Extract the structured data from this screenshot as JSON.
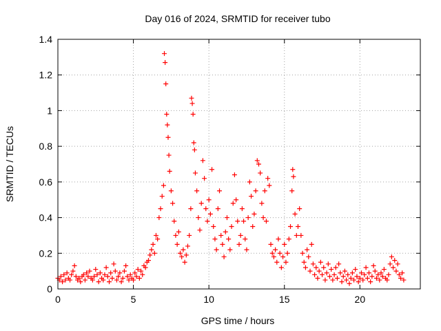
{
  "chart_data": {
    "type": "scatter",
    "title": "Day 016 of 2024, SRMTID for receiver tubo",
    "xlabel": "GPS time / hours",
    "ylabel": "SRMTID / TECUs",
    "xlim": [
      0,
      24
    ],
    "ylim": [
      0,
      1.4
    ],
    "xticks": [
      0,
      5,
      10,
      15,
      20
    ],
    "yticks": [
      0,
      0.2,
      0.4,
      0.6,
      0.8,
      1,
      1.2,
      1.4
    ],
    "xtick_labels": [
      "0",
      "5",
      "10",
      "15",
      "20"
    ],
    "ytick_labels": [
      "0",
      "0.2",
      "0.4",
      "0.6",
      "0.8",
      "1",
      "1.2",
      "1.4"
    ],
    "grid": true,
    "marker": "+",
    "series": [
      {
        "name": "SRMTID",
        "color": "#ff0000",
        "points": [
          [
            0.0,
            0.06
          ],
          [
            0.1,
            0.05
          ],
          [
            0.2,
            0.07
          ],
          [
            0.3,
            0.04
          ],
          [
            0.4,
            0.08
          ],
          [
            0.5,
            0.05
          ],
          [
            0.6,
            0.09
          ],
          [
            0.7,
            0.06
          ],
          [
            0.8,
            0.05
          ],
          [
            0.9,
            0.08
          ],
          [
            1.0,
            0.1
          ],
          [
            1.1,
            0.13
          ],
          [
            1.2,
            0.07
          ],
          [
            1.3,
            0.05
          ],
          [
            1.4,
            0.06
          ],
          [
            1.5,
            0.04
          ],
          [
            1.6,
            0.07
          ],
          [
            1.7,
            0.08
          ],
          [
            1.8,
            0.05
          ],
          [
            1.9,
            0.09
          ],
          [
            2.0,
            0.07
          ],
          [
            2.1,
            0.1
          ],
          [
            2.2,
            0.06
          ],
          [
            2.3,
            0.05
          ],
          [
            2.4,
            0.07
          ],
          [
            2.5,
            0.11
          ],
          [
            2.6,
            0.08
          ],
          [
            2.7,
            0.04
          ],
          [
            2.8,
            0.09
          ],
          [
            2.9,
            0.06
          ],
          [
            3.0,
            0.05
          ],
          [
            3.1,
            0.08
          ],
          [
            3.2,
            0.12
          ],
          [
            3.3,
            0.07
          ],
          [
            3.4,
            0.04
          ],
          [
            3.5,
            0.09
          ],
          [
            3.6,
            0.06
          ],
          [
            3.7,
            0.14
          ],
          [
            3.8,
            0.1
          ],
          [
            3.9,
            0.05
          ],
          [
            4.0,
            0.07
          ],
          [
            4.1,
            0.09
          ],
          [
            4.2,
            0.04
          ],
          [
            4.3,
            0.06
          ],
          [
            4.4,
            0.1
          ],
          [
            4.5,
            0.13
          ],
          [
            4.6,
            0.07
          ],
          [
            4.7,
            0.05
          ],
          [
            4.8,
            0.08
          ],
          [
            4.9,
            0.06
          ],
          [
            5.0,
            0.05
          ],
          [
            5.1,
            0.09
          ],
          [
            5.2,
            0.07
          ],
          [
            5.3,
            0.11
          ],
          [
            5.4,
            0.06
          ],
          [
            5.5,
            0.1
          ],
          [
            5.6,
            0.08
          ],
          [
            5.7,
            0.13
          ],
          [
            5.8,
            0.12
          ],
          [
            5.9,
            0.15
          ],
          [
            6.0,
            0.16
          ],
          [
            6.1,
            0.19
          ],
          [
            6.2,
            0.22
          ],
          [
            6.3,
            0.25
          ],
          [
            6.4,
            0.2
          ],
          [
            6.5,
            0.3
          ],
          [
            6.6,
            0.28
          ],
          [
            6.7,
            0.4
          ],
          [
            6.8,
            0.45
          ],
          [
            6.9,
            0.52
          ],
          [
            7.0,
            0.58
          ],
          [
            7.05,
            1.32
          ],
          [
            7.1,
            1.27
          ],
          [
            7.15,
            1.15
          ],
          [
            7.2,
            0.98
          ],
          [
            7.25,
            0.92
          ],
          [
            7.3,
            0.85
          ],
          [
            7.35,
            0.75
          ],
          [
            7.4,
            0.66
          ],
          [
            7.5,
            0.55
          ],
          [
            7.6,
            0.48
          ],
          [
            7.7,
            0.38
          ],
          [
            7.8,
            0.3
          ],
          [
            7.9,
            0.25
          ],
          [
            8.0,
            0.32
          ],
          [
            8.1,
            0.2
          ],
          [
            8.2,
            0.18
          ],
          [
            8.3,
            0.22
          ],
          [
            8.4,
            0.15
          ],
          [
            8.5,
            0.19
          ],
          [
            8.6,
            0.24
          ],
          [
            8.7,
            0.3
          ],
          [
            8.8,
            0.45
          ],
          [
            8.85,
            1.07
          ],
          [
            8.9,
            1.04
          ],
          [
            8.95,
            0.98
          ],
          [
            9.0,
            0.82
          ],
          [
            9.05,
            0.78
          ],
          [
            9.1,
            0.65
          ],
          [
            9.2,
            0.55
          ],
          [
            9.3,
            0.4
          ],
          [
            9.4,
            0.33
          ],
          [
            9.5,
            0.48
          ],
          [
            9.6,
            0.72
          ],
          [
            9.7,
            0.62
          ],
          [
            9.8,
            0.45
          ],
          [
            9.9,
            0.38
          ],
          [
            10.0,
            0.5
          ],
          [
            10.1,
            0.42
          ],
          [
            10.2,
            0.67
          ],
          [
            10.3,
            0.35
          ],
          [
            10.4,
            0.28
          ],
          [
            10.5,
            0.22
          ],
          [
            10.6,
            0.45
          ],
          [
            10.7,
            0.55
          ],
          [
            10.8,
            0.3
          ],
          [
            10.9,
            0.25
          ],
          [
            11.0,
            0.18
          ],
          [
            11.1,
            0.32
          ],
          [
            11.2,
            0.4
          ],
          [
            11.3,
            0.28
          ],
          [
            11.4,
            0.22
          ],
          [
            11.5,
            0.35
          ],
          [
            11.6,
            0.48
          ],
          [
            11.7,
            0.64
          ],
          [
            11.8,
            0.5
          ],
          [
            11.9,
            0.38
          ],
          [
            12.0,
            0.25
          ],
          [
            12.1,
            0.3
          ],
          [
            12.2,
            0.45
          ],
          [
            12.3,
            0.38
          ],
          [
            12.4,
            0.28
          ],
          [
            12.5,
            0.22
          ],
          [
            12.6,
            0.4
          ],
          [
            12.7,
            0.6
          ],
          [
            12.8,
            0.52
          ],
          [
            12.9,
            0.35
          ],
          [
            13.0,
            0.42
          ],
          [
            13.1,
            0.55
          ],
          [
            13.2,
            0.72
          ],
          [
            13.3,
            0.7
          ],
          [
            13.4,
            0.65
          ],
          [
            13.5,
            0.48
          ],
          [
            13.6,
            0.4
          ],
          [
            13.7,
            0.55
          ],
          [
            13.8,
            0.38
          ],
          [
            13.9,
            0.62
          ],
          [
            14.0,
            0.58
          ],
          [
            14.1,
            0.25
          ],
          [
            14.2,
            0.2
          ],
          [
            14.3,
            0.18
          ],
          [
            14.4,
            0.22
          ],
          [
            14.5,
            0.15
          ],
          [
            14.6,
            0.28
          ],
          [
            14.7,
            0.2
          ],
          [
            14.8,
            0.12
          ],
          [
            14.9,
            0.18
          ],
          [
            15.0,
            0.25
          ],
          [
            15.1,
            0.15
          ],
          [
            15.2,
            0.2
          ],
          [
            15.3,
            0.28
          ],
          [
            15.4,
            0.35
          ],
          [
            15.5,
            0.55
          ],
          [
            15.55,
            0.67
          ],
          [
            15.6,
            0.63
          ],
          [
            15.7,
            0.42
          ],
          [
            15.8,
            0.3
          ],
          [
            15.9,
            0.35
          ],
          [
            16.0,
            0.45
          ],
          [
            16.1,
            0.3
          ],
          [
            16.2,
            0.2
          ],
          [
            16.3,
            0.15
          ],
          [
            16.4,
            0.12
          ],
          [
            16.5,
            0.22
          ],
          [
            16.6,
            0.18
          ],
          [
            16.7,
            0.1
          ],
          [
            16.8,
            0.25
          ],
          [
            16.9,
            0.14
          ],
          [
            17.0,
            0.08
          ],
          [
            17.1,
            0.12
          ],
          [
            17.2,
            0.06
          ],
          [
            17.3,
            0.1
          ],
          [
            17.4,
            0.15
          ],
          [
            17.5,
            0.08
          ],
          [
            17.6,
            0.12
          ],
          [
            17.7,
            0.05
          ],
          [
            17.8,
            0.09
          ],
          [
            17.9,
            0.14
          ],
          [
            18.0,
            0.07
          ],
          [
            18.1,
            0.11
          ],
          [
            18.2,
            0.05
          ],
          [
            18.3,
            0.08
          ],
          [
            18.4,
            0.12
          ],
          [
            18.5,
            0.06
          ],
          [
            18.6,
            0.14
          ],
          [
            18.7,
            0.09
          ],
          [
            18.8,
            0.04
          ],
          [
            18.9,
            0.07
          ],
          [
            19.0,
            0.1
          ],
          [
            19.1,
            0.05
          ],
          [
            19.2,
            0.08
          ],
          [
            19.3,
            0.03
          ],
          [
            19.4,
            0.06
          ],
          [
            19.5,
            0.09
          ],
          [
            19.6,
            0.05
          ],
          [
            19.7,
            0.11
          ],
          [
            19.8,
            0.07
          ],
          [
            19.9,
            0.04
          ],
          [
            20.0,
            0.06
          ],
          [
            20.1,
            0.09
          ],
          [
            20.2,
            0.05
          ],
          [
            20.3,
            0.08
          ],
          [
            20.4,
            0.12
          ],
          [
            20.5,
            0.06
          ],
          [
            20.6,
            0.09
          ],
          [
            20.7,
            0.04
          ],
          [
            20.8,
            0.07
          ],
          [
            20.9,
            0.13
          ],
          [
            21.0,
            0.1
          ],
          [
            21.1,
            0.06
          ],
          [
            21.2,
            0.08
          ],
          [
            21.3,
            0.05
          ],
          [
            21.4,
            0.09
          ],
          [
            21.5,
            0.07
          ],
          [
            21.6,
            0.11
          ],
          [
            21.7,
            0.06
          ],
          [
            21.8,
            0.05
          ],
          [
            21.9,
            0.08
          ],
          [
            22.0,
            0.14
          ],
          [
            22.1,
            0.18
          ],
          [
            22.2,
            0.12
          ],
          [
            22.3,
            0.16
          ],
          [
            22.4,
            0.1
          ],
          [
            22.5,
            0.14
          ],
          [
            22.6,
            0.08
          ],
          [
            22.7,
            0.06
          ],
          [
            22.8,
            0.09
          ],
          [
            22.9,
            0.05
          ]
        ]
      }
    ]
  }
}
